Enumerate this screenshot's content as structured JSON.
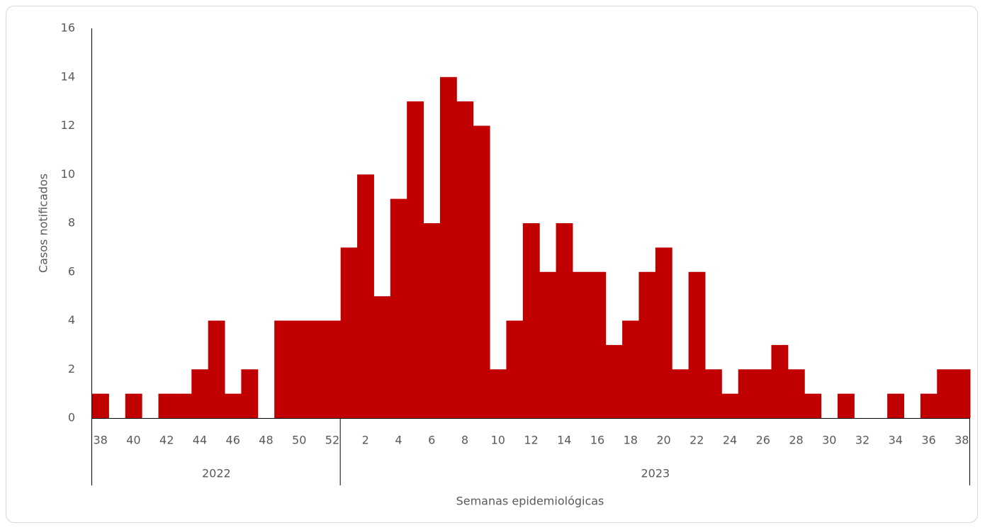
{
  "chart_data": {
    "type": "bar",
    "y_label": "Casos notificados",
    "x_label": "Semanas epidemiológicas",
    "categories": [
      "38",
      null,
      "40",
      null,
      "42",
      null,
      "44",
      null,
      "46",
      null,
      "48",
      null,
      "50",
      null,
      "52",
      null,
      "2",
      null,
      "4",
      null,
      "6",
      null,
      "8",
      null,
      "10",
      null,
      "12",
      null,
      "14",
      null,
      "16",
      null,
      "18",
      null,
      "20",
      null,
      "22",
      null,
      "24",
      null,
      "26",
      null,
      "28",
      null,
      "30",
      null,
      "32",
      null,
      "34",
      null,
      "36",
      null,
      "38"
    ],
    "groups": [
      "2022",
      "2023"
    ],
    "values": [
      1,
      0,
      1,
      0,
      1,
      1,
      2,
      4,
      1,
      2,
      0,
      4,
      4,
      4,
      4,
      7,
      10,
      5,
      9,
      13,
      8,
      14,
      13,
      12,
      2,
      4,
      8,
      6,
      8,
      6,
      6,
      3,
      4,
      6,
      7,
      2,
      6,
      2,
      1,
      2,
      2,
      3,
      2,
      1,
      0,
      1,
      0,
      0,
      1,
      0,
      1,
      2,
      2
    ],
    "color": "#c00000",
    "ylim": [
      0,
      16
    ],
    "yticks": [
      0,
      2,
      4,
      6,
      8,
      10,
      12,
      14,
      16
    ]
  }
}
